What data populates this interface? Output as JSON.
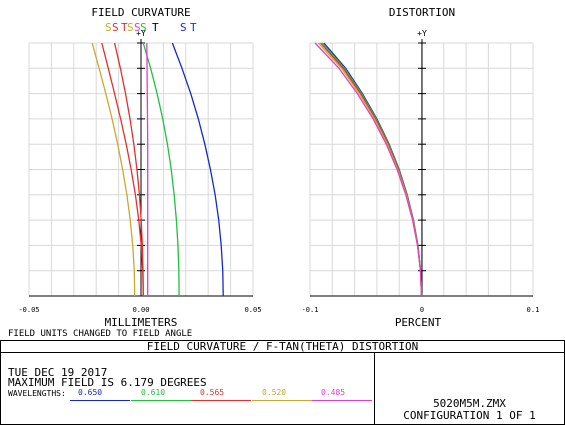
{
  "chart_data": [
    {
      "type": "line",
      "title": "FIELD CURVATURE",
      "xlabel": "MILLIMETERS",
      "ylabel": "+Y",
      "xlim": [
        -0.05,
        0.05
      ],
      "ylim": [
        0,
        1
      ],
      "xticks": [
        "-0.05",
        "0.00",
        "0.05"
      ],
      "grid": true,
      "series_labels": [
        {
          "text": "S",
          "color": "#c8a832"
        },
        {
          "text": "S",
          "color": "#e03030"
        },
        {
          "text": "T",
          "color": "#e03030"
        },
        {
          "text": "S",
          "color": "#c8a832"
        },
        {
          "text": "S",
          "color": "#e040c8"
        },
        {
          "text": "S",
          "color": "#20c040"
        },
        {
          "text": "T",
          "color": "#000000"
        },
        {
          "text": "S",
          "color": "#2030c0"
        },
        {
          "text": "T",
          "color": "#2030c0"
        }
      ],
      "series": [
        {
          "wavelength": "0.650",
          "color": "#1428c8",
          "curve": "S",
          "x": [
            0.0367,
            0.0365,
            0.0358,
            0.0347,
            0.0331,
            0.031,
            0.0285,
            0.0256,
            0.0222,
            0.0183,
            0.014
          ],
          "y": [
            0,
            0.1,
            0.2,
            0.3,
            0.4,
            0.5,
            0.6,
            0.7,
            0.8,
            0.9,
            1.0
          ]
        },
        {
          "wavelength": "0.610",
          "color": "#20c040",
          "curve": "S",
          "x": [
            0.017,
            0.0169,
            0.0165,
            0.0158,
            0.0148,
            0.0135,
            0.0118,
            0.0097,
            0.0072,
            0.0043,
            0.001
          ],
          "y": [
            0,
            0.1,
            0.2,
            0.3,
            0.4,
            0.5,
            0.6,
            0.7,
            0.8,
            0.9,
            1.0
          ]
        },
        {
          "wavelength": "0.565",
          "color": "#e03030",
          "curve": "S",
          "x": [
            0.001,
            0.0008,
            0.0001,
            -0.001,
            -0.0025,
            -0.0044,
            -0.0066,
            -0.0091,
            -0.0118,
            -0.0146,
            -0.0175
          ],
          "y": [
            0,
            0.1,
            0.2,
            0.3,
            0.4,
            0.5,
            0.6,
            0.7,
            0.8,
            0.9,
            1.0
          ]
        },
        {
          "wavelength": "0.565",
          "color": "#e03030",
          "curve": "T",
          "x": [
            0.001,
            0.0009,
            0.0006,
            0.0001,
            -0.0007,
            -0.0018,
            -0.0032,
            -0.0049,
            -0.0069,
            -0.0092,
            -0.0118
          ],
          "y": [
            0,
            0.1,
            0.2,
            0.3,
            0.4,
            0.5,
            0.6,
            0.7,
            0.8,
            0.9,
            1.0
          ]
        },
        {
          "wavelength": "0.520",
          "color": "#c8a832",
          "curve": "S",
          "x": [
            -0.0028,
            -0.003,
            -0.0037,
            -0.0048,
            -0.0063,
            -0.0082,
            -0.0104,
            -0.0129,
            -0.0157,
            -0.0187,
            -0.0218
          ],
          "y": [
            0,
            0.1,
            0.2,
            0.3,
            0.4,
            0.5,
            0.6,
            0.7,
            0.8,
            0.9,
            1.0
          ]
        },
        {
          "wavelength": "0.485",
          "color": "#e040c8",
          "curve": "S",
          "x": [
            0.003,
            0.003,
            0.003,
            0.003,
            0.003,
            0.003,
            0.003,
            0.0029,
            0.0028,
            0.0027,
            0.0026
          ],
          "y": [
            0,
            0.1,
            0.2,
            0.3,
            0.4,
            0.5,
            0.6,
            0.7,
            0.8,
            0.9,
            1.0
          ]
        }
      ]
    },
    {
      "type": "line",
      "title": "DISTORTION",
      "xlabel": "PERCENT",
      "ylabel": "+Y",
      "xlim": [
        -0.1,
        0.1
      ],
      "ylim": [
        0,
        1
      ],
      "xticks": [
        "-0.1",
        "0",
        "0.1"
      ],
      "grid": true,
      "series": [
        {
          "wavelength": "0.650",
          "color": "#1428c8",
          "x": [
            0,
            -0.0008,
            -0.0032,
            -0.0072,
            -0.0128,
            -0.02,
            -0.029,
            -0.04,
            -0.053,
            -0.068,
            -0.0875
          ],
          "y": [
            0,
            0.1,
            0.2,
            0.3,
            0.4,
            0.5,
            0.6,
            0.7,
            0.8,
            0.9,
            1.0
          ]
        },
        {
          "wavelength": "0.610",
          "color": "#20c040",
          "x": [
            0,
            -0.0008,
            -0.0033,
            -0.0073,
            -0.013,
            -0.0203,
            -0.0294,
            -0.0405,
            -0.0537,
            -0.069,
            -0.089
          ],
          "y": [
            0,
            0.1,
            0.2,
            0.3,
            0.4,
            0.5,
            0.6,
            0.7,
            0.8,
            0.9,
            1.0
          ]
        },
        {
          "wavelength": "0.565",
          "color": "#e03030",
          "x": [
            0,
            -0.0009,
            -0.0034,
            -0.0075,
            -0.0133,
            -0.0207,
            -0.0299,
            -0.0412,
            -0.0546,
            -0.0702,
            -0.0905
          ],
          "y": [
            0,
            0.1,
            0.2,
            0.3,
            0.4,
            0.5,
            0.6,
            0.7,
            0.8,
            0.9,
            1.0
          ]
        },
        {
          "wavelength": "0.520",
          "color": "#c8a832",
          "x": [
            0,
            -0.0009,
            -0.0035,
            -0.0077,
            -0.0136,
            -0.0212,
            -0.0306,
            -0.0421,
            -0.0558,
            -0.0718,
            -0.0925
          ],
          "y": [
            0,
            0.1,
            0.2,
            0.3,
            0.4,
            0.5,
            0.6,
            0.7,
            0.8,
            0.9,
            1.0
          ]
        },
        {
          "wavelength": "0.485",
          "color": "#e040c8",
          "x": [
            0,
            -0.0009,
            -0.0036,
            -0.008,
            -0.0141,
            -0.0219,
            -0.0316,
            -0.0434,
            -0.0575,
            -0.074,
            -0.0955
          ],
          "y": [
            0,
            0.1,
            0.2,
            0.3,
            0.4,
            0.5,
            0.6,
            0.7,
            0.8,
            0.9,
            1.0
          ]
        }
      ]
    }
  ],
  "notes": {
    "field_units": "FIELD UNITS CHANGED TO FIELD ANGLE"
  },
  "footer": {
    "title": "FIELD CURVATURE / F-TAN(THETA) DISTORTION",
    "date": "TUE DEC 19 2017",
    "max_field": "MAXIMUM FIELD IS 6.179 DEGREES",
    "wavelengths_label": "WAVELENGTHS:",
    "wavelengths": [
      {
        "value": "0.650",
        "color": "#1428c8"
      },
      {
        "value": "0.610",
        "color": "#20c040"
      },
      {
        "value": "0.565",
        "color": "#e03030"
      },
      {
        "value": "0.520",
        "color": "#c8a832"
      },
      {
        "value": "0.485",
        "color": "#e040c8"
      }
    ],
    "filename": "5020M5M.ZMX",
    "configuration": "CONFIGURATION 1 OF 1"
  }
}
